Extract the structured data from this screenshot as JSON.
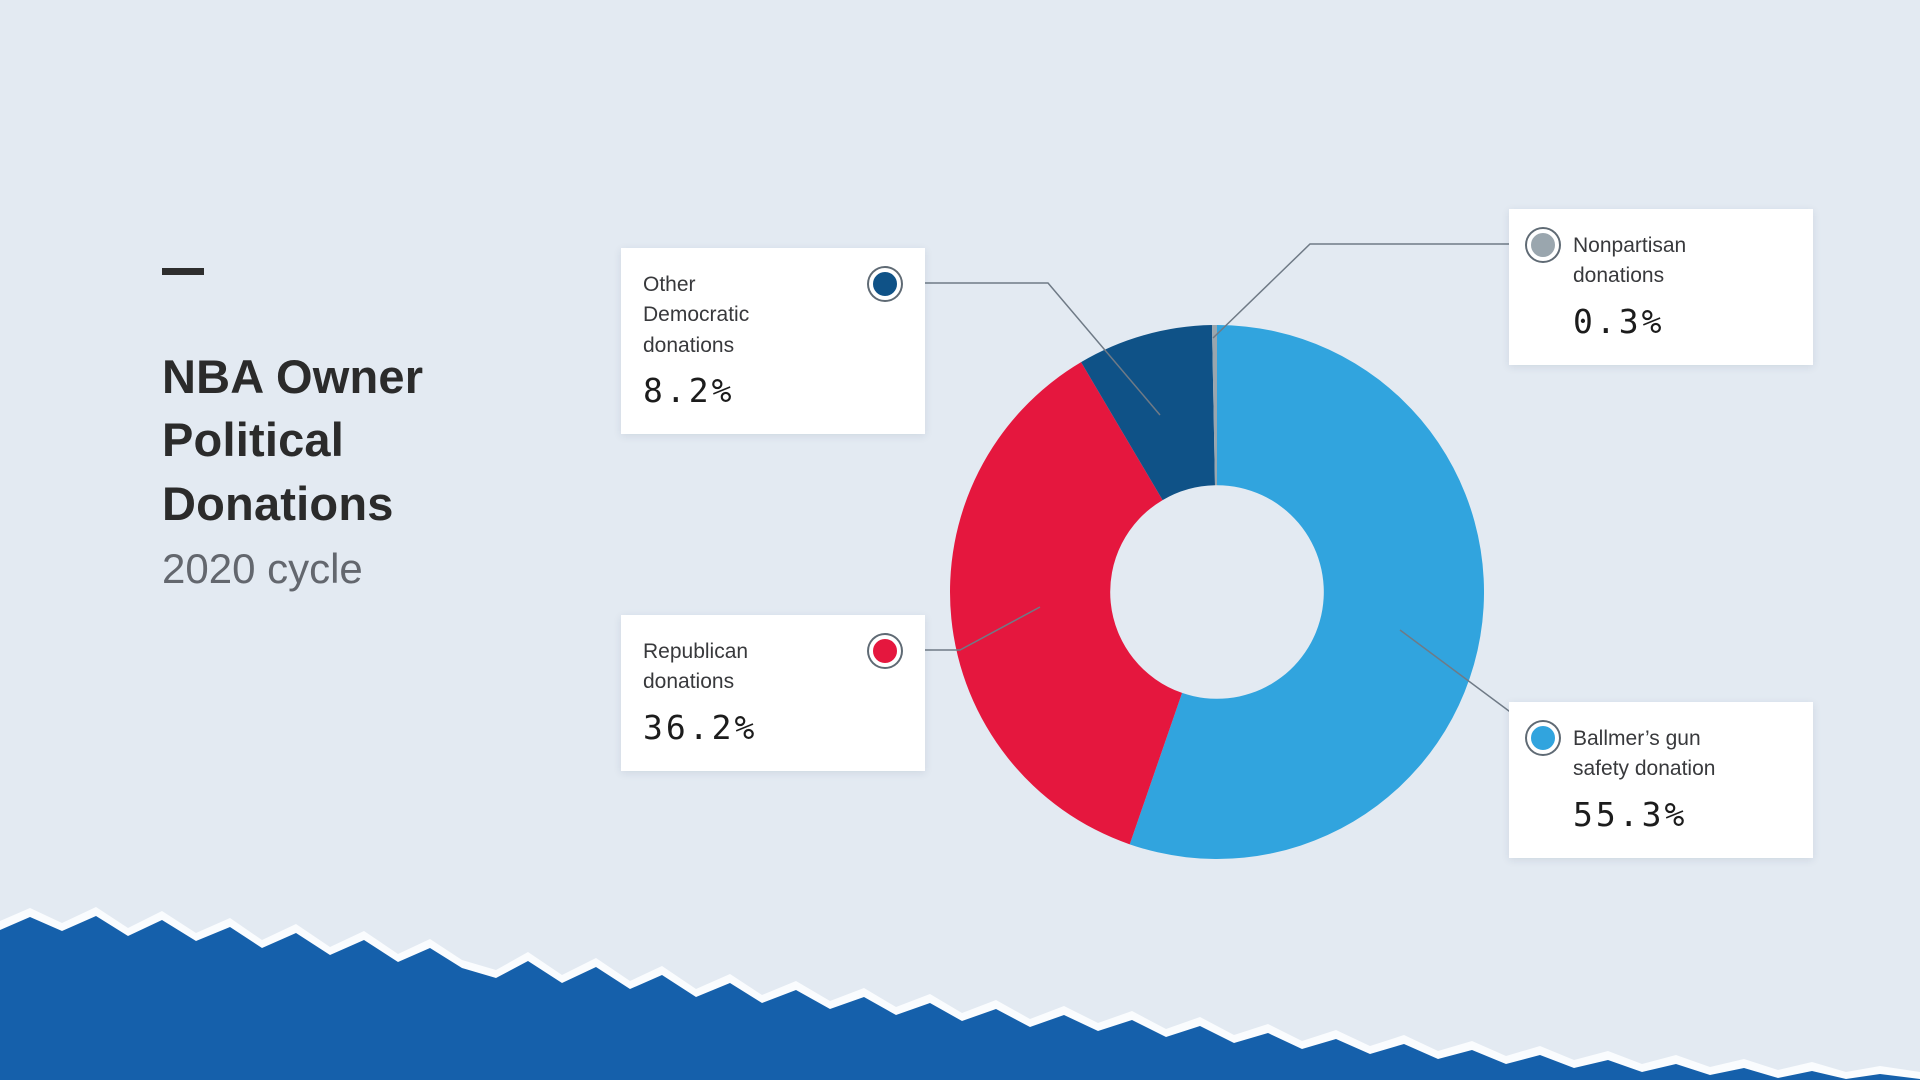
{
  "header": {
    "title": "NBA Owner\nPolitical\nDonations",
    "subtitle": "2020 cycle"
  },
  "chart_data": {
    "type": "pie",
    "donut": true,
    "title": "NBA Owner Political Donations",
    "subtitle": "2020 cycle",
    "categories": [
      "Ballmer's gun safety donation",
      "Republican donations",
      "Other Democratic donations",
      "Nonpartisan donations"
    ],
    "values": [
      55.3,
      36.2,
      8.2,
      0.3
    ],
    "unit": "%",
    "colors": [
      "#31a4de",
      "#e5173e",
      "#0f5287",
      "#9aa6ae"
    ],
    "start_angle_deg": 0,
    "direction": "clockwise",
    "inner_radius_ratio": 0.4,
    "legend_position": "callouts"
  },
  "callouts": [
    {
      "label": "Other\nDemocratic\ndonations",
      "value": "8.2%",
      "color": "#0f5287"
    },
    {
      "label": "Nonpartisan\ndonations",
      "value": "0.3%",
      "color": "#9aa6ae"
    },
    {
      "label": "Republican\ndonations",
      "value": "36.2%",
      "color": "#e5173e"
    },
    {
      "label": "Ballmer’s gun\nsafety donation",
      "value": "55.3%",
      "color": "#31a4de"
    }
  ],
  "colors": {
    "background": "#e3eaf2",
    "torn_paper": "#1560ab",
    "torn_fringe": "#fafcfe",
    "connector": "#6f7a86"
  }
}
